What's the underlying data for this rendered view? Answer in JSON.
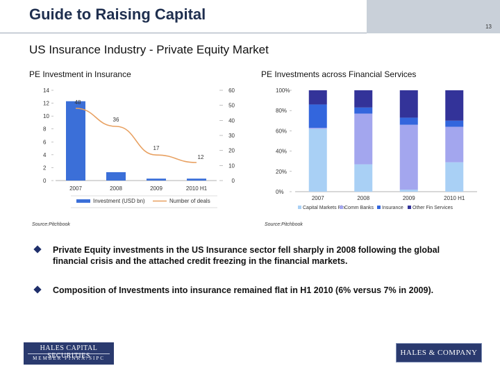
{
  "header": {
    "title": "Guide to Raising Capital",
    "page_number": "13"
  },
  "subtitle": "US Insurance Industry - Private Equity Market",
  "left_chart": {
    "title": "PE Investment in Insurance",
    "source": "Source:Pitchbook"
  },
  "right_chart": {
    "title": "PE Investments across Financial Services",
    "source": "Source:Pitchbook"
  },
  "colors": {
    "investment_bar": "#3b6fd8",
    "deals_line": "#e8a060",
    "capital_markets": "#a9d0f5",
    "comm_banks": "#a3a6ee",
    "insurance": "#3366dd",
    "other_fin": "#333399",
    "header_band": "#c9d0d9",
    "title_text": "#1f2f4f"
  },
  "chart_data": [
    {
      "type": "bar",
      "title": "PE Investment in Insurance",
      "categories": [
        "2007",
        "2008",
        "2009",
        "2010 H1"
      ],
      "series": [
        {
          "name": "Investment (USD bn)",
          "type": "bar",
          "axis": "left",
          "values": [
            12.3,
            1.3,
            0.3,
            0.3
          ]
        },
        {
          "name": "Number of deals",
          "type": "line",
          "axis": "right",
          "values": [
            48,
            36,
            17,
            12
          ]
        }
      ],
      "ylim": [
        0,
        14
      ],
      "yticks": [
        "14",
        "12",
        "10",
        "8",
        "6",
        "4",
        "2",
        "0"
      ],
      "y2lim": [
        0,
        60
      ],
      "y2ticks": [
        "60",
        "50",
        "40",
        "30",
        "20",
        "10",
        "0"
      ],
      "data_labels": [
        "48",
        "36",
        "17",
        "12"
      ],
      "legend_position": "bottom"
    },
    {
      "type": "bar",
      "stacked": "percent",
      "title": "PE Investments across Financial Services",
      "categories": [
        "2007",
        "2008",
        "2009",
        "2010 H1"
      ],
      "series": [
        {
          "name": "Capital Markets Fin",
          "values": [
            62,
            27,
            2,
            29
          ]
        },
        {
          "name": "Comm Banks",
          "values": [
            1,
            50,
            64,
            35
          ]
        },
        {
          "name": "Insurance",
          "values": [
            23,
            6,
            7,
            6
          ]
        },
        {
          "name": "Other Fin Services",
          "values": [
            14,
            17,
            27,
            30
          ]
        }
      ],
      "ylim": [
        0,
        100
      ],
      "yticks": [
        "100%",
        "80%",
        "60%",
        "40%",
        "20%",
        "0%"
      ],
      "legend_position": "bottom"
    }
  ],
  "bullets": [
    "Private Equity investments in the US Insurance sector fell sharply in 2008 following the global financial crisis and the attached credit freezing in the financial markets.",
    "Composition of Investments into insurance remained flat in H1 2010 (6% versus 7% in 2009)."
  ],
  "footer": {
    "left_logo_line1": "HALES CAPITAL SECURITIES",
    "left_logo_line2": "MEMBER FINRA/SIPC",
    "right_logo": "HALES & COMPANY"
  }
}
